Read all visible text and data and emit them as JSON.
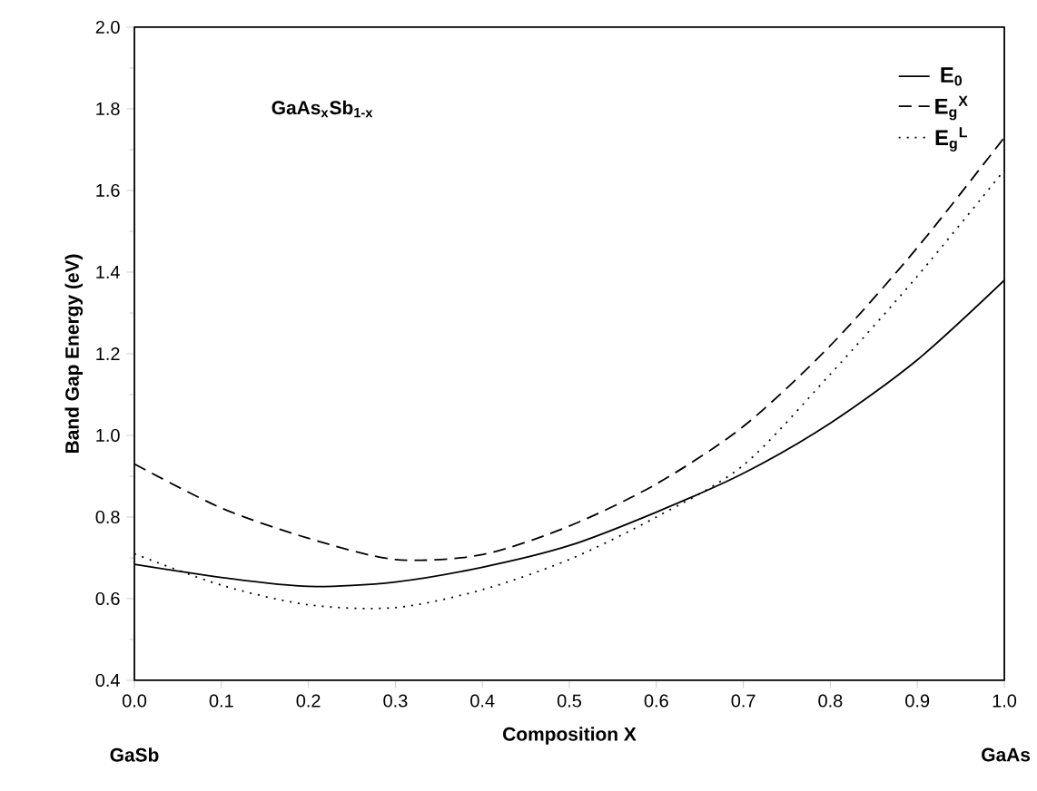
{
  "chart_data": {
    "type": "line",
    "xlabel": "Composition X",
    "ylabel": "Band Gap Energy (eV)",
    "annotations": [
      "GaAs$_{x}$Sb$_{1-x}$",
      "GaSb",
      "GaAs"
    ],
    "x": [
      0,
      0.1,
      0.2,
      0.3,
      0.4,
      0.5,
      0.6,
      0.7,
      0.8,
      0.9,
      1.0
    ],
    "series": [
      {
        "name": "E$_{0}$",
        "color": "#000000",
        "line_style": "solid",
        "values": [
          0.684,
          0.652,
          0.63,
          0.641,
          0.677,
          0.73,
          0.812,
          0.907,
          1.03,
          1.185,
          1.38
        ]
      },
      {
        "name": "E$_{g}$$^{X}$",
        "color": "#000000",
        "line_style": "dashed",
        "values": [
          0.93,
          0.822,
          0.748,
          0.696,
          0.708,
          0.778,
          0.881,
          1.022,
          1.22,
          1.46,
          1.73
        ]
      },
      {
        "name": "E$_{g}$$^{L}$",
        "color": "#000000",
        "line_style": "dotted",
        "values": [
          0.71,
          0.633,
          0.585,
          0.578,
          0.622,
          0.696,
          0.8,
          0.927,
          1.15,
          1.39,
          1.65
        ]
      }
    ],
    "xlim": [
      0,
      1.0
    ],
    "ylim": [
      0.4,
      2.0
    ],
    "xticks": [
      {
        "value": 0,
        "label": "0.0"
      },
      0.1,
      0.2,
      0.3,
      0.4,
      0.5,
      0.6,
      0.7,
      0.8,
      0.9,
      {
        "value": 1.0,
        "label": "1.0"
      }
    ],
    "yticks": [
      0.4,
      0.6,
      0.8,
      {
        "value": 1.0,
        "label": "1.0"
      },
      1.2,
      1.4,
      1.6,
      1.8,
      {
        "value": 2.0,
        "label": "2.0"
      }
    ],
    "legend": "top right",
    "grid": false
  }
}
